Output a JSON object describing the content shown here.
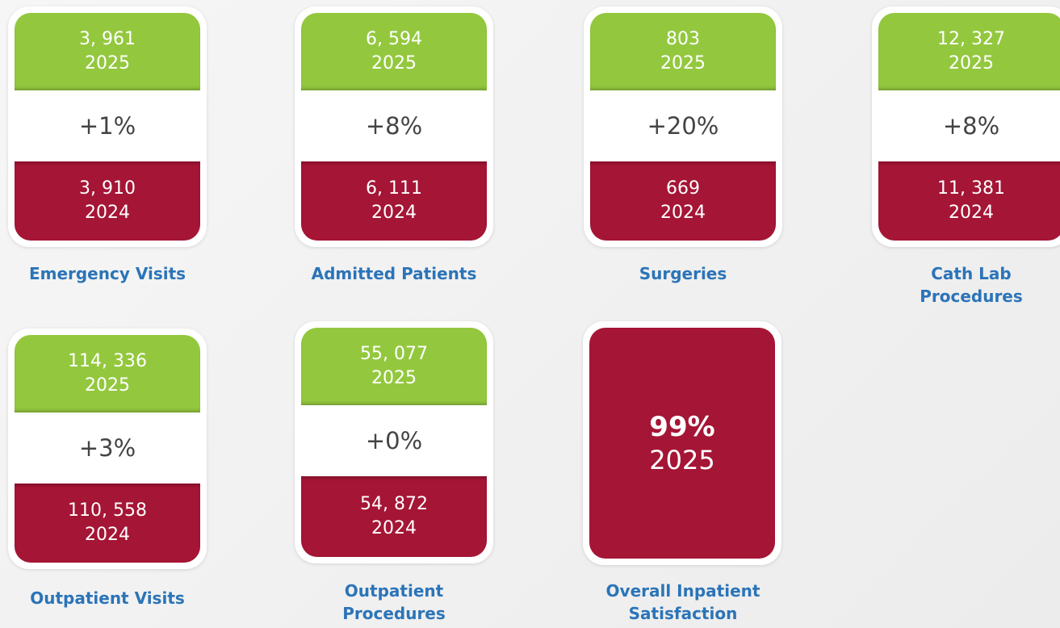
{
  "cards": [
    {
      "current_value": "3, 961",
      "current_year": "2025",
      "change": "+1%",
      "previous_value": "3, 910",
      "previous_year": "2024",
      "label": "Emergency Visits"
    },
    {
      "current_value": "6, 594",
      "current_year": "2025",
      "change": "+8%",
      "previous_value": "6, 111",
      "previous_year": "2024",
      "label": "Admitted Patients"
    },
    {
      "current_value": "803",
      "current_year": "2025",
      "change": "+20%",
      "previous_value": "669",
      "previous_year": "2024",
      "label": "Surgeries"
    },
    {
      "current_value": "12, 327",
      "current_year": "2025",
      "change": "+8%",
      "previous_value": "11, 381",
      "previous_year": "2024",
      "label": "Cath Lab Procedures"
    },
    {
      "current_value": "114, 336",
      "current_year": "2025",
      "change": "+3%",
      "previous_value": "110, 558",
      "previous_year": "2024",
      "label": "Outpatient Visits"
    },
    {
      "current_value": "55, 077",
      "current_year": "2025",
      "change": "+0%",
      "previous_value": "54, 872",
      "previous_year": "2024",
      "label": "Outpatient Procedures"
    }
  ],
  "satisfaction": {
    "value": "99%",
    "year": "2025",
    "label": "Overall Inpatient Satisfaction"
  }
}
